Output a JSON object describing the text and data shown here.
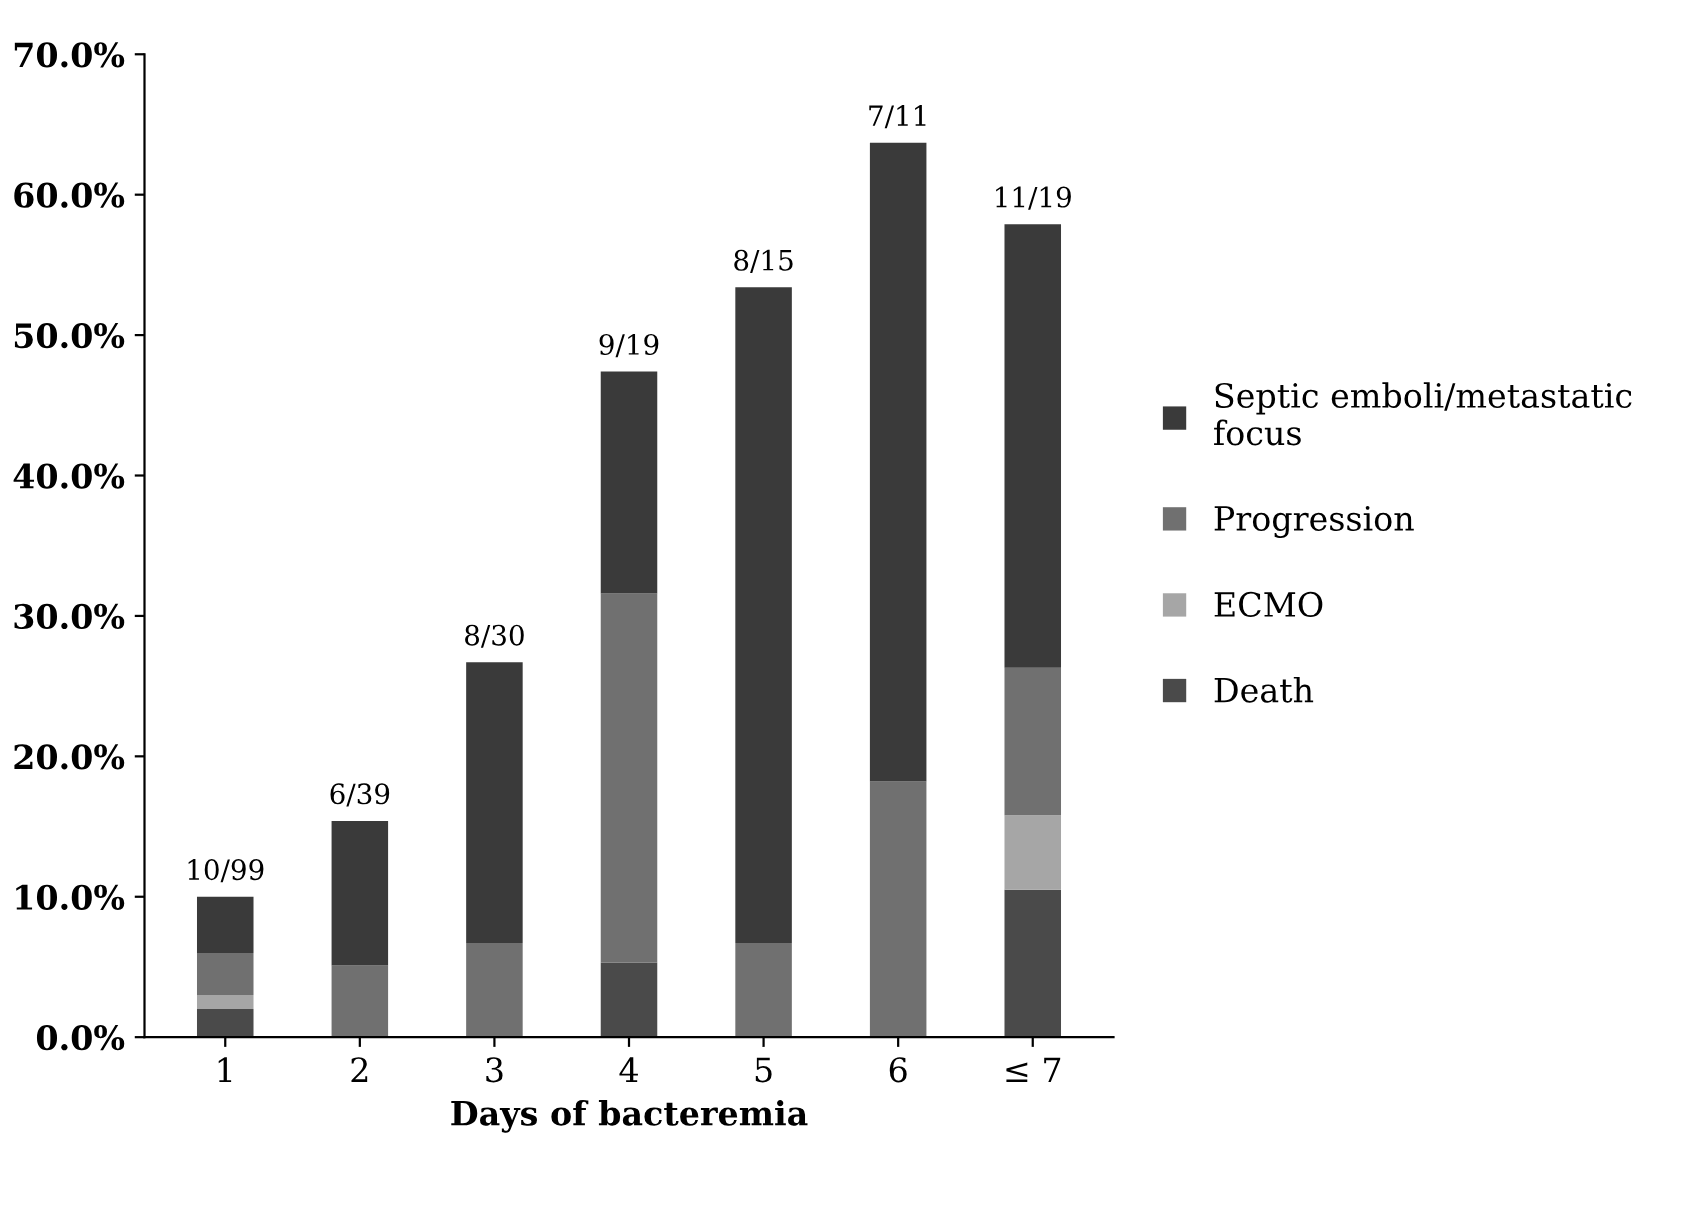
{
  "chart_data": {
    "type": "bar",
    "stacked": true,
    "xlabel": "Days of bacteremia",
    "categories": [
      "1",
      "2",
      "3",
      "4",
      "5",
      "6",
      "≤ 7"
    ],
    "series": [
      {
        "name": "Death",
        "color": "#4a4a4a",
        "values": [
          2.0,
          0,
          0,
          5.3,
          0,
          0,
          10.5
        ]
      },
      {
        "name": "ECMO",
        "color": "#a6a6a6",
        "values": [
          1.0,
          0,
          0,
          0,
          0,
          0,
          5.3
        ]
      },
      {
        "name": "Progression",
        "color": "#707070",
        "values": [
          3.0,
          5.1,
          6.7,
          26.3,
          6.7,
          18.2,
          10.5
        ]
      },
      {
        "name": "Septic emboli/metastatic focus",
        "color": "#3a3a3a",
        "values": [
          4.0,
          10.3,
          20.0,
          15.8,
          46.7,
          45.5,
          31.6
        ]
      }
    ],
    "totals": [
      "10/99",
      "6/39",
      "8/30",
      "9/19",
      "8/15",
      "7/11",
      "11/19"
    ],
    "ylim": [
      0,
      70
    ],
    "yticks": [
      {
        "value": 0,
        "label": "0.0%"
      },
      {
        "value": 10,
        "label": "10.0%"
      },
      {
        "value": 20,
        "label": "20.0%"
      },
      {
        "value": 30,
        "label": "30.0%"
      },
      {
        "value": 40,
        "label": "40.0%"
      },
      {
        "value": 50,
        "label": "50.0%"
      },
      {
        "value": 60,
        "label": "60.0%"
      },
      {
        "value": 70,
        "label": "70.0%"
      }
    ],
    "grid": false,
    "legend": "right"
  }
}
